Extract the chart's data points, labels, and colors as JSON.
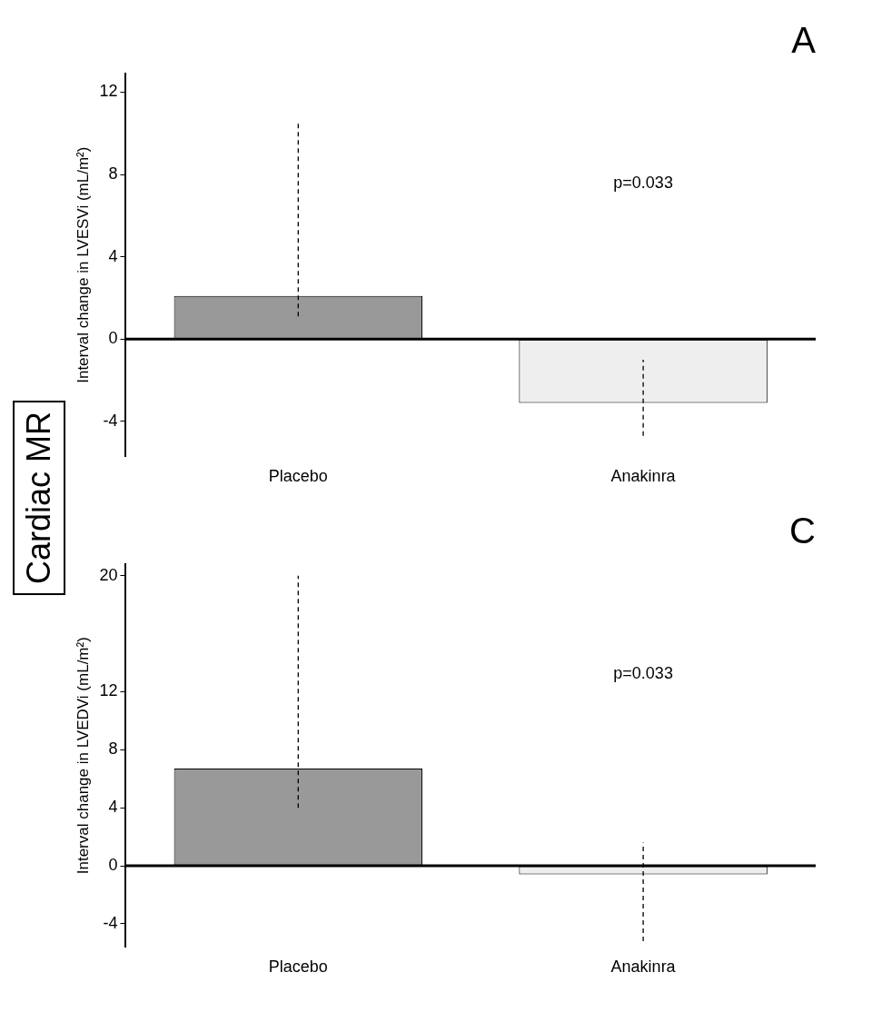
{
  "chart_data": [
    {
      "type": "other",
      "title": "Cardiac MR"
    },
    {
      "type": "bar",
      "title": "A",
      "categories": [
        "Placebo",
        "Anakinra"
      ],
      "values": [
        2.1,
        -3.1
      ],
      "colors": [
        "#999999",
        "#eeeeee"
      ],
      "errors": [
        [
          1.1,
          10.6
        ],
        [
          -4.7,
          -1.0
        ]
      ],
      "ylim": [
        -5.7,
        12.9
      ],
      "yticks": [
        -4,
        0,
        4,
        8,
        12
      ],
      "ylabel": "Interval change in LVESVi (mL/m²)",
      "annotations": [
        "p=0.033"
      ],
      "ref_lines": [
        {
          "axis": "y",
          "value": 0,
          "color": "#000000"
        }
      ],
      "legend": false
    },
    {
      "type": "bar",
      "title": "C",
      "categories": [
        "Placebo",
        "Anakinra"
      ],
      "values": [
        6.7,
        -0.6
      ],
      "colors": [
        "#999999",
        "#eeeeee"
      ],
      "errors": [
        [
          4.0,
          20
        ],
        [
          -5.2,
          1.6
        ]
      ],
      "ylim": [
        -5.6,
        20.8
      ],
      "yticks": [
        -4,
        0,
        4,
        8,
        12,
        20
      ],
      "ylabel": "Interval change in LVEDVi (mL/m²)",
      "annotations": [
        "p=0.033"
      ],
      "ref_lines": [
        {
          "axis": "y",
          "value": 0,
          "color": "#000000"
        }
      ],
      "legend": false
    }
  ]
}
